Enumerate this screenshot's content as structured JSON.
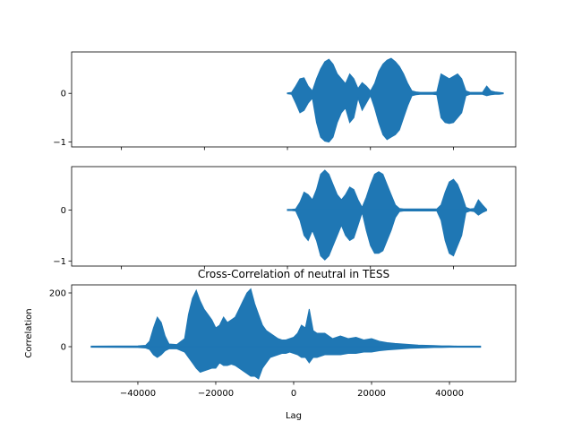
{
  "colors": {
    "series": "#1f77b4",
    "axis": "#000000",
    "background": "#ffffff"
  },
  "chart_data": [
    {
      "type": "line",
      "title": "",
      "xlabel": "",
      "ylabel": "",
      "xlim": [
        -52000,
        55000
      ],
      "ylim": [
        -1.1,
        0.85
      ],
      "xticks": [
        -40000,
        -20000,
        0,
        20000,
        40000
      ],
      "xtick_labels_shown": false,
      "yticks": [
        -1,
        0
      ],
      "ytick_labels": [
        "−1",
        "0"
      ],
      "grid": false,
      "envelope": {
        "x": [
          0,
          1000,
          2000,
          3000,
          4000,
          5000,
          6000,
          7000,
          8000,
          9000,
          10000,
          11000,
          12000,
          13000,
          14000,
          15000,
          16000,
          17000,
          18000,
          19000,
          20000,
          21000,
          22000,
          23000,
          24000,
          25000,
          26000,
          27000,
          28000,
          29000,
          30000,
          31000,
          32000,
          33000,
          34000,
          35000,
          36000,
          37000,
          38000,
          39000,
          40000,
          41000,
          42000,
          43000,
          44000,
          45000,
          46000,
          47000,
          48000,
          49000,
          50000,
          51000,
          52000
        ],
        "upper": [
          0.01,
          0.02,
          0.15,
          0.3,
          0.32,
          0.15,
          0.05,
          0.3,
          0.5,
          0.65,
          0.7,
          0.6,
          0.4,
          0.3,
          0.2,
          0.4,
          0.3,
          0.1,
          0.22,
          0.15,
          0.05,
          0.2,
          0.45,
          0.6,
          0.68,
          0.72,
          0.65,
          0.55,
          0.4,
          0.2,
          0.05,
          0.03,
          0.02,
          0.02,
          0.02,
          0.02,
          0.03,
          0.4,
          0.35,
          0.3,
          0.35,
          0.4,
          0.3,
          0.05,
          0.02,
          0.02,
          0.02,
          0.02,
          0.15,
          0.05,
          0.03,
          0.02,
          0.01
        ],
        "lower": [
          -0.01,
          -0.02,
          -0.2,
          -0.4,
          -0.35,
          -0.2,
          -0.1,
          -0.6,
          -0.9,
          -0.98,
          -1.0,
          -0.9,
          -0.6,
          -0.4,
          -0.3,
          -0.6,
          -0.5,
          -0.1,
          -0.35,
          -0.2,
          -0.05,
          -0.3,
          -0.6,
          -0.85,
          -0.95,
          -0.9,
          -0.85,
          -0.75,
          -0.5,
          -0.25,
          -0.05,
          -0.03,
          -0.02,
          -0.02,
          -0.02,
          -0.02,
          -0.03,
          -0.5,
          -0.6,
          -0.62,
          -0.6,
          -0.5,
          -0.4,
          -0.05,
          -0.02,
          -0.02,
          -0.02,
          -0.02,
          -0.05,
          -0.03,
          -0.02,
          -0.02,
          -0.01
        ]
      }
    },
    {
      "type": "line",
      "title": "",
      "xlabel": "",
      "ylabel": "",
      "xlim": [
        -52000,
        55000
      ],
      "ylim": [
        -1.1,
        0.85
      ],
      "xticks": [
        -40000,
        -20000,
        0,
        20000,
        40000
      ],
      "xtick_labels_shown": false,
      "yticks": [
        -1,
        0
      ],
      "ytick_labels": [
        "−1",
        "0"
      ],
      "grid": false,
      "envelope": {
        "x": [
          0,
          1000,
          2000,
          3000,
          4000,
          5000,
          6000,
          7000,
          8000,
          9000,
          10000,
          11000,
          12000,
          13000,
          14000,
          15000,
          16000,
          17000,
          18000,
          19000,
          20000,
          21000,
          22000,
          23000,
          24000,
          25000,
          26000,
          27000,
          28000,
          29000,
          30000,
          31000,
          32000,
          33000,
          34000,
          35000,
          36000,
          37000,
          38000,
          39000,
          40000,
          41000,
          42000,
          43000,
          44000,
          45000,
          46000,
          47000,
          48000
        ],
        "upper": [
          0.01,
          0.01,
          0.02,
          0.15,
          0.35,
          0.3,
          0.2,
          0.4,
          0.7,
          0.78,
          0.7,
          0.5,
          0.3,
          0.2,
          0.3,
          0.45,
          0.4,
          0.2,
          0.05,
          0.25,
          0.5,
          0.7,
          0.75,
          0.7,
          0.5,
          0.3,
          0.1,
          0.03,
          0.02,
          0.02,
          0.02,
          0.02,
          0.02,
          0.02,
          0.02,
          0.02,
          0.02,
          0.1,
          0.35,
          0.55,
          0.6,
          0.5,
          0.3,
          0.05,
          0.02,
          0.03,
          0.2,
          0.1,
          0.01
        ],
        "lower": [
          -0.01,
          -0.01,
          -0.02,
          -0.2,
          -0.5,
          -0.6,
          -0.4,
          -0.6,
          -0.9,
          -0.98,
          -0.9,
          -0.7,
          -0.5,
          -0.3,
          -0.5,
          -0.6,
          -0.55,
          -0.3,
          -0.05,
          -0.4,
          -0.7,
          -0.85,
          -0.85,
          -0.8,
          -0.6,
          -0.4,
          -0.15,
          -0.03,
          -0.02,
          -0.02,
          -0.02,
          -0.02,
          -0.02,
          -0.02,
          -0.02,
          -0.02,
          -0.02,
          -0.2,
          -0.6,
          -0.85,
          -0.9,
          -0.7,
          -0.5,
          -0.05,
          -0.02,
          -0.03,
          -0.1,
          -0.05,
          -0.01
        ]
      }
    },
    {
      "type": "line",
      "title": "Cross-Correlation of neutral in TESS",
      "xlabel": "Lag",
      "ylabel": "Correlation",
      "xlim": [
        -57000,
        57000
      ],
      "ylim": [
        -130,
        230
      ],
      "xticks": [
        -40000,
        -20000,
        0,
        20000,
        40000
      ],
      "xtick_labels_shown": true,
      "xtick_labels": [
        "−40000",
        "−20000",
        "0",
        "20000",
        "40000"
      ],
      "yticks": [
        0,
        200
      ],
      "ytick_labels": [
        "0",
        "200"
      ],
      "grid": false,
      "envelope": {
        "x": [
          -52000,
          -40000,
          -38000,
          -37000,
          -36000,
          -35000,
          -34000,
          -33000,
          -32000,
          -30000,
          -28000,
          -27000,
          -26000,
          -25000,
          -24000,
          -23000,
          -22000,
          -21000,
          -20000,
          -19000,
          -18000,
          -17000,
          -16000,
          -15000,
          -14000,
          -13000,
          -12000,
          -11000,
          -10000,
          -9000,
          -8000,
          -7000,
          -6000,
          -5000,
          -4000,
          -3000,
          -2000,
          -1000,
          0,
          1000,
          2000,
          3000,
          4000,
          5000,
          6000,
          8000,
          10000,
          12000,
          14000,
          16000,
          18000,
          20000,
          22000,
          24000,
          26000,
          28000,
          30000,
          32000,
          34000,
          36000,
          38000,
          40000,
          42000,
          44000,
          46000,
          48000
        ],
        "upper": [
          2,
          3,
          5,
          20,
          70,
          110,
          90,
          40,
          10,
          8,
          30,
          120,
          180,
          210,
          170,
          140,
          120,
          100,
          70,
          80,
          110,
          90,
          100,
          110,
          140,
          170,
          200,
          215,
          160,
          120,
          80,
          60,
          50,
          40,
          30,
          25,
          25,
          30,
          35,
          50,
          80,
          70,
          140,
          60,
          50,
          50,
          30,
          40,
          30,
          35,
          25,
          30,
          20,
          15,
          12,
          10,
          8,
          6,
          5,
          4,
          3,
          3,
          2,
          2,
          2,
          2
        ],
        "lower": [
          -2,
          -3,
          -5,
          -10,
          -30,
          -40,
          -30,
          -15,
          -8,
          -8,
          -20,
          -40,
          -60,
          -80,
          -95,
          -90,
          -85,
          -80,
          -80,
          -60,
          -70,
          -70,
          -65,
          -70,
          -80,
          -90,
          -100,
          -110,
          -110,
          -120,
          -80,
          -60,
          -40,
          -35,
          -30,
          -25,
          -25,
          -20,
          -25,
          -30,
          -40,
          -40,
          -60,
          -40,
          -40,
          -30,
          -30,
          -30,
          -25,
          -25,
          -20,
          -20,
          -15,
          -12,
          -10,
          -8,
          -6,
          -5,
          -4,
          -3,
          -3,
          -2,
          -2,
          -2,
          -2,
          -2
        ]
      }
    }
  ]
}
